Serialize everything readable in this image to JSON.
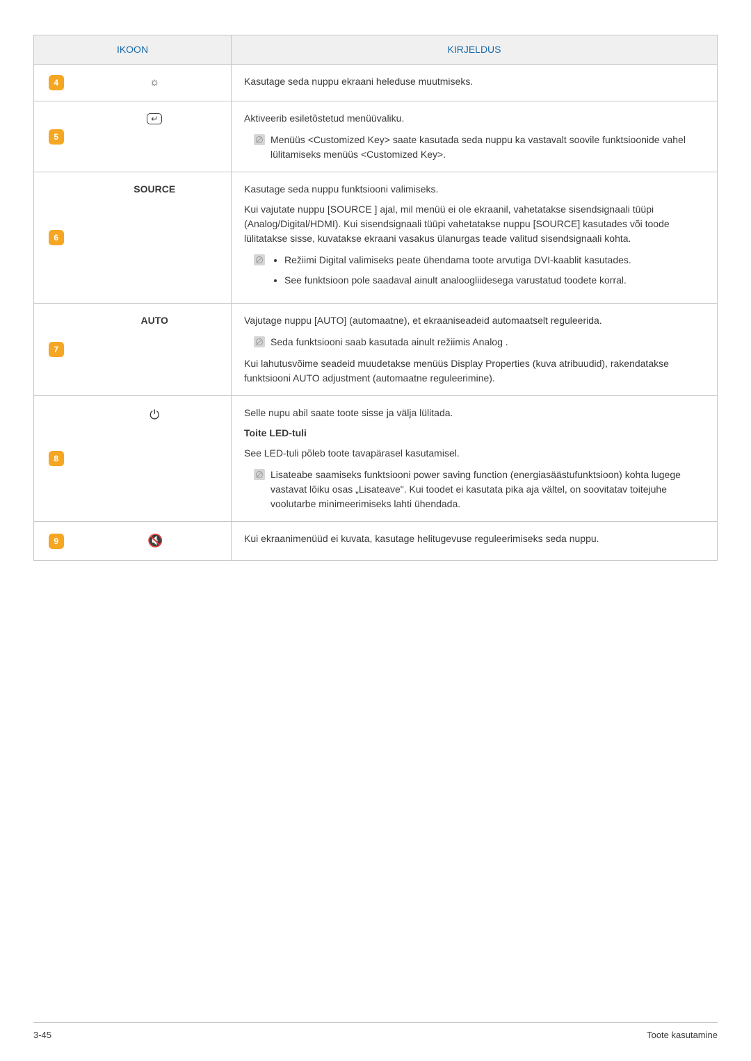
{
  "header": {
    "ikoon": "IKOON",
    "kirjeldus": "KIRJELDUS"
  },
  "rows": [
    {
      "num": "4",
      "icon": "☼",
      "desc": "Kasutage seda nuppu ekraani heleduse muutmiseks."
    },
    {
      "num": "5",
      "icon": "↵",
      "p1": "Aktiveerib esiletõstetud menüüvaliku.",
      "note": "Menüüs <Customized Key> saate kasutada seda nuppu ka vastavalt soovile funktsioonide vahel lülitamiseks menüüs <Customized Key>."
    },
    {
      "num": "6",
      "icon": "SOURCE",
      "p1": "Kasutage seda nuppu funktsiooni valimiseks.",
      "p2": "Kui vajutate nuppu [SOURCE ] ajal, mil menüü ei ole ekraanil, vahetatakse sisendsignaali tüüpi (Analog/Digital/HDMI). Kui sisendsignaali tüüpi vahetatakse nuppu [SOURCE] kasutades või toode lülitatakse sisse, kuvatakse ekraani vasakus ülanurgas teade valitud sisendsignaali kohta.",
      "b1": "Režiimi Digital valimiseks peate ühendama toote arvutiga DVI-kaablit kasutades.",
      "b2": "See funktsioon pole saadaval ainult analoogliidesega varustatud toodete korral."
    },
    {
      "num": "7",
      "icon": "AUTO",
      "p1": "Vajutage nuppu [AUTO] (automaatne), et ekraaniseadeid automaatselt reguleerida.",
      "note": "Seda funktsiooni saab kasutada ainult režiimis Analog .",
      "p2": "Kui lahutusvõime seadeid muudetakse menüüs Display Properties (kuva atribuudid), rakendatakse funktsiooni AUTO adjustment (automaatne reguleerimine)."
    },
    {
      "num": "8",
      "icon": "⏻",
      "p1": "Selle nupu abil saate toote sisse ja välja lülitada.",
      "h": "Toite LED-tuli",
      "p2": "See LED-tuli põleb toote tavapärasel kasutamisel.",
      "note": "Lisateabe saamiseks funktsiooni power saving function (energiasäästufunktsioon) kohta lugege vastavat lõiku osas „Lisateave\". Kui toodet ei kasutata pika aja vältel, on soovitatav toitejuhe voolutarbe minimeerimiseks lahti ühendada."
    },
    {
      "num": "9",
      "icon": "🔇",
      "desc": "Kui ekraanimenüüd ei kuvata, kasutage helitugevuse reguleerimiseks seda nuppu."
    }
  ],
  "footer": {
    "left": "3-45",
    "right": "Toote kasutamine"
  }
}
